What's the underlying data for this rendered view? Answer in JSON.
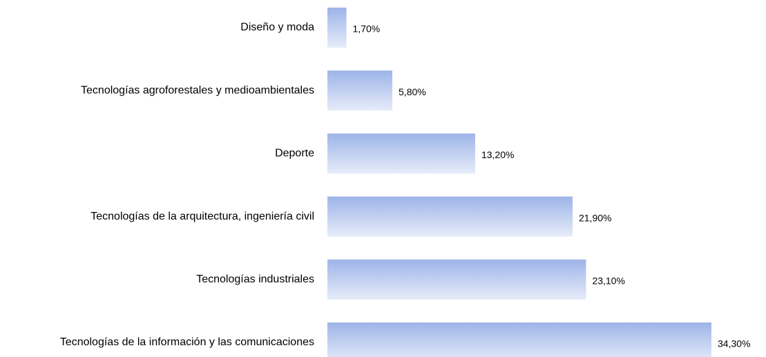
{
  "chart_data": {
    "type": "bar",
    "orientation": "horizontal",
    "categories": [
      "Diseño y moda",
      "Tecnologías agroforestales y medioambientales",
      "Deporte",
      "Tecnologías de la arquitectura, ingeniería civil",
      "Tecnologías industriales",
      "Tecnologías de la información y las comunicaciones"
    ],
    "values": [
      1.7,
      5.8,
      13.2,
      21.9,
      23.1,
      34.3
    ],
    "value_labels": [
      "1,70%",
      "5,80%",
      "13,20%",
      "21,90%",
      "23,10%",
      "34,30%"
    ],
    "color": "#9db4e8"
  }
}
